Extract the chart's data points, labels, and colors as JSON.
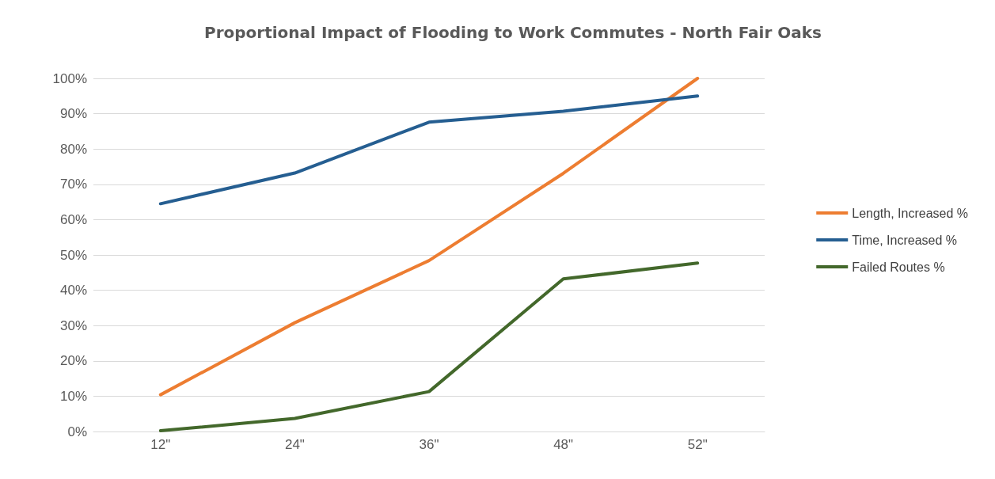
{
  "chart_data": {
    "type": "line",
    "title": "Proportional Impact of Flooding to Work Commutes - North Fair Oaks",
    "categories": [
      "12\"",
      "24\"",
      "36\"",
      "48\"",
      "52\""
    ],
    "series": [
      {
        "name": "Length, Increased %",
        "color": "#ed7d31",
        "values": [
          10.4,
          30.8,
          48.4,
          73.1,
          100
        ]
      },
      {
        "name": "Time, Increased %",
        "color": "#255e91",
        "values": [
          64.5,
          73.2,
          87.6,
          90.7,
          95.0
        ]
      },
      {
        "name": "Failed Routes %",
        "color": "#43682b",
        "values": [
          0.2,
          3.7,
          11.3,
          43.2,
          47.7
        ]
      }
    ],
    "ylim": [
      0,
      100
    ],
    "yticks": [
      {
        "value": 0,
        "label": "0%"
      },
      {
        "value": 10,
        "label": "10%"
      },
      {
        "value": 20,
        "label": "20%"
      },
      {
        "value": 30,
        "label": "30%"
      },
      {
        "value": 40,
        "label": "40%"
      },
      {
        "value": 50,
        "label": "50%"
      },
      {
        "value": 60,
        "label": "60%"
      },
      {
        "value": 70,
        "label": "70%"
      },
      {
        "value": 80,
        "label": "80%"
      },
      {
        "value": 90,
        "label": "90%"
      },
      {
        "value": 100,
        "label": "100%"
      }
    ],
    "grid": "y",
    "legend": "right",
    "marker": "none",
    "line_style": "solid"
  }
}
